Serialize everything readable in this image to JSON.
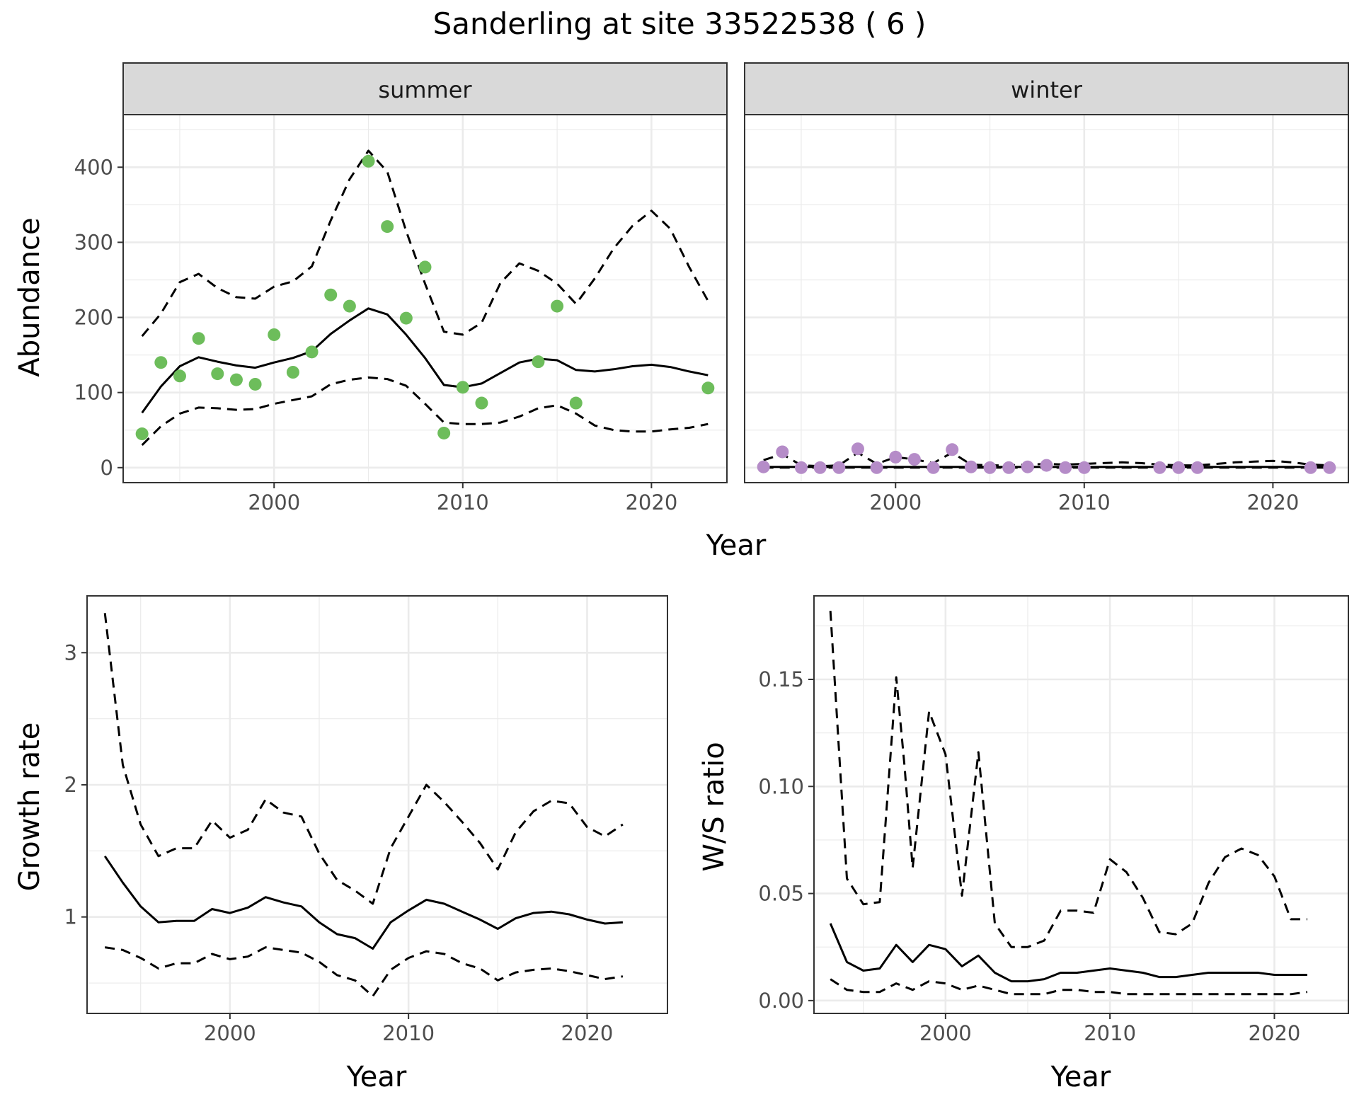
{
  "title": "Sanderling at site 33522538 ( 6 )",
  "colors": {
    "summer_points": "#6dbd5b",
    "winter_points": "#b58cc8",
    "line": "#000000",
    "strip_bg": "#d9d9d9",
    "grid_major": "#ebebeb",
    "panel_border": "#333333"
  },
  "chart_data": [
    {
      "type": "line",
      "panel": "abundance",
      "facets": [
        "summer",
        "winter"
      ],
      "xlabel": "Year",
      "ylabel": "Abundance",
      "xlim": [
        1992,
        2024
      ],
      "ylim": [
        -20,
        470
      ],
      "x_ticks": [
        2000,
        2010,
        2020
      ],
      "y_ticks": [
        0,
        100,
        200,
        300,
        400
      ],
      "grid": true,
      "summer": {
        "observed": {
          "x": [
            1993,
            1994,
            1995,
            1996,
            1997,
            1998,
            1999,
            2000,
            2001,
            2002,
            2003,
            2004,
            2005,
            2006,
            2007,
            2008,
            2009,
            2010,
            2011,
            2014,
            2015,
            2016,
            2023
          ],
          "y": [
            45,
            140,
            122,
            172,
            125,
            117,
            111,
            177,
            127,
            154,
            230,
            215,
            408,
            321,
            199,
            267,
            46,
            107,
            86,
            141,
            215,
            86,
            106
          ]
        },
        "fit": {
          "x": [
            1993,
            1994,
            1995,
            1996,
            1997,
            1998,
            1999,
            2000,
            2001,
            2002,
            2003,
            2004,
            2005,
            2006,
            2007,
            2008,
            2009,
            2010,
            2011,
            2012,
            2013,
            2014,
            2015,
            2016,
            2017,
            2018,
            2019,
            2020,
            2021,
            2022,
            2023
          ],
          "y": [
            73,
            108,
            135,
            147,
            141,
            136,
            133,
            140,
            146,
            155,
            178,
            196,
            212,
            204,
            177,
            146,
            110,
            107,
            112,
            126,
            140,
            145,
            143,
            130,
            128,
            131,
            135,
            137,
            134,
            128,
            123
          ]
        },
        "upper": {
          "x": [
            1993,
            1994,
            1995,
            1996,
            1997,
            1998,
            1999,
            2000,
            2001,
            2002,
            2003,
            2004,
            2005,
            2006,
            2007,
            2008,
            2009,
            2010,
            2011,
            2012,
            2013,
            2014,
            2015,
            2016,
            2017,
            2018,
            2019,
            2020,
            2021,
            2022,
            2023
          ],
          "y": [
            175,
            205,
            247,
            258,
            239,
            227,
            225,
            241,
            248,
            268,
            329,
            384,
            422,
            394,
            315,
            245,
            181,
            177,
            193,
            246,
            272,
            262,
            245,
            218,
            252,
            292,
            322,
            342,
            318,
            267,
            222
          ]
        },
        "lower": {
          "x": [
            1993,
            1994,
            1995,
            1996,
            1997,
            1998,
            1999,
            2000,
            2001,
            2002,
            2003,
            2004,
            2005,
            2006,
            2007,
            2008,
            2009,
            2010,
            2011,
            2012,
            2013,
            2014,
            2015,
            2016,
            2017,
            2018,
            2019,
            2020,
            2021,
            2022,
            2023
          ],
          "y": [
            30,
            55,
            72,
            80,
            79,
            77,
            78,
            85,
            90,
            95,
            111,
            117,
            120,
            118,
            109,
            85,
            60,
            58,
            58,
            60,
            68,
            79,
            83,
            72,
            56,
            50,
            48,
            48,
            51,
            53,
            58
          ]
        }
      },
      "winter": {
        "observed": {
          "x": [
            1993,
            1994,
            1995,
            1996,
            1997,
            1998,
            1999,
            2000,
            2001,
            2002,
            2003,
            2004,
            2005,
            2006,
            2007,
            2008,
            2009,
            2010,
            2014,
            2015,
            2016,
            2022,
            2023
          ],
          "y": [
            1,
            21,
            0,
            0,
            0,
            25,
            0,
            14,
            11,
            0,
            24,
            1,
            0,
            0,
            1,
            3,
            0,
            0,
            0,
            0,
            0,
            0,
            0
          ]
        },
        "fit": {
          "x": [
            1993,
            1995,
            2000,
            2005,
            2010,
            2015,
            2020,
            2023
          ],
          "y": [
            1,
            1,
            1,
            1,
            1,
            1,
            1,
            1
          ]
        },
        "upper": {
          "x": [
            1993,
            1994,
            1995,
            1996,
            1997,
            1998,
            1999,
            2000,
            2001,
            2002,
            2003,
            2004,
            2005,
            2006,
            2007,
            2008,
            2009,
            2010,
            2011,
            2012,
            2013,
            2014,
            2015,
            2016,
            2017,
            2018,
            2019,
            2020,
            2021,
            2022,
            2023
          ],
          "y": [
            10,
            18,
            3,
            2,
            3,
            20,
            5,
            14,
            11,
            6,
            20,
            4,
            3,
            3,
            4,
            5,
            4,
            5,
            6,
            7,
            6,
            4,
            3,
            3,
            5,
            7,
            8,
            9,
            7,
            4,
            3
          ]
        },
        "lower": {
          "x": [
            1993,
            2023
          ],
          "y": [
            0,
            0
          ]
        }
      }
    },
    {
      "type": "line",
      "panel": "growth",
      "xlabel": "Year",
      "ylabel": "Growth rate",
      "xlim": [
        1992,
        2024.5
      ],
      "ylim": [
        0.27,
        3.43
      ],
      "x_ticks": [
        2000,
        2010,
        2020
      ],
      "y_ticks": [
        1,
        2,
        3
      ],
      "grid": true,
      "fit": {
        "x": [
          1993,
          1994,
          1995,
          1996,
          1997,
          1998,
          1999,
          2000,
          2001,
          2002,
          2003,
          2004,
          2005,
          2006,
          2007,
          2008,
          2009,
          2010,
          2011,
          2012,
          2013,
          2014,
          2015,
          2016,
          2017,
          2018,
          2019,
          2020,
          2021,
          2022
        ],
        "y": [
          1.46,
          1.26,
          1.08,
          0.96,
          0.97,
          0.97,
          1.06,
          1.03,
          1.07,
          1.15,
          1.11,
          1.08,
          0.96,
          0.87,
          0.84,
          0.76,
          0.96,
          1.05,
          1.13,
          1.1,
          1.04,
          0.98,
          0.91,
          0.99,
          1.03,
          1.04,
          1.02,
          0.98,
          0.95,
          0.96
        ]
      },
      "upper": {
        "x": [
          1993,
          1994,
          1995,
          1996,
          1997,
          1998,
          1999,
          2000,
          2001,
          2002,
          2003,
          2004,
          2005,
          2006,
          2007,
          2008,
          2009,
          2010,
          2011,
          2012,
          2013,
          2014,
          2015,
          2016,
          2017,
          2018,
          2019,
          2020,
          2021,
          2022
        ],
        "y": [
          3.3,
          2.15,
          1.7,
          1.46,
          1.52,
          1.52,
          1.73,
          1.6,
          1.66,
          1.89,
          1.79,
          1.76,
          1.48,
          1.28,
          1.2,
          1.1,
          1.52,
          1.76,
          2.0,
          1.87,
          1.72,
          1.56,
          1.36,
          1.64,
          1.8,
          1.88,
          1.86,
          1.68,
          1.61,
          1.7
        ]
      },
      "lower": {
        "x": [
          1993,
          1994,
          1995,
          1996,
          1997,
          1998,
          1999,
          2000,
          2001,
          2002,
          2003,
          2004,
          2005,
          2006,
          2007,
          2008,
          2009,
          2010,
          2011,
          2012,
          2013,
          2014,
          2015,
          2016,
          2017,
          2018,
          2019,
          2020,
          2021,
          2022
        ],
        "y": [
          0.77,
          0.75,
          0.69,
          0.61,
          0.65,
          0.65,
          0.72,
          0.68,
          0.7,
          0.77,
          0.75,
          0.73,
          0.66,
          0.56,
          0.52,
          0.4,
          0.6,
          0.69,
          0.74,
          0.72,
          0.65,
          0.61,
          0.52,
          0.58,
          0.6,
          0.61,
          0.59,
          0.56,
          0.53,
          0.55
        ]
      }
    },
    {
      "type": "line",
      "panel": "ratio",
      "xlabel": "Year",
      "ylabel": "W/S ratio",
      "xlim": [
        1992,
        2024.5
      ],
      "ylim": [
        -0.006,
        0.189
      ],
      "x_ticks": [
        2000,
        2010,
        2020
      ],
      "y_ticks": [
        0.0,
        0.05,
        0.1,
        0.15
      ],
      "y_tick_labels": [
        "0.00",
        "0.05",
        "0.10",
        "0.15"
      ],
      "grid": true,
      "fit": {
        "x": [
          1993,
          1994,
          1995,
          1996,
          1997,
          1998,
          1999,
          2000,
          2001,
          2002,
          2003,
          2004,
          2005,
          2006,
          2007,
          2008,
          2009,
          2010,
          2011,
          2012,
          2013,
          2014,
          2015,
          2016,
          2017,
          2018,
          2019,
          2020,
          2021,
          2022
        ],
        "y": [
          0.036,
          0.018,
          0.014,
          0.015,
          0.026,
          0.018,
          0.026,
          0.024,
          0.016,
          0.021,
          0.013,
          0.009,
          0.009,
          0.01,
          0.013,
          0.013,
          0.014,
          0.015,
          0.014,
          0.013,
          0.011,
          0.011,
          0.012,
          0.013,
          0.013,
          0.013,
          0.013,
          0.012,
          0.012,
          0.012
        ]
      },
      "upper": {
        "x": [
          1993,
          1994,
          1995,
          1996,
          1997,
          1997.5,
          1998,
          1999,
          2000,
          2001,
          2002,
          2003,
          2004,
          2005,
          2006,
          2007,
          2008,
          2009,
          2010,
          2011,
          2012,
          2013,
          2014,
          2015,
          2016,
          2017,
          2018,
          2019,
          2020,
          2021,
          2022
        ],
        "y": [
          0.182,
          0.057,
          0.045,
          0.046,
          0.151,
          0.11,
          0.062,
          0.135,
          0.115,
          0.049,
          0.116,
          0.036,
          0.025,
          0.025,
          0.028,
          0.042,
          0.042,
          0.041,
          0.066,
          0.06,
          0.048,
          0.032,
          0.031,
          0.036,
          0.055,
          0.067,
          0.071,
          0.068,
          0.058,
          0.038,
          0.038
        ]
      },
      "lower": {
        "x": [
          1993,
          1994,
          1995,
          1996,
          1997,
          1998,
          1999,
          2000,
          2001,
          2002,
          2003,
          2004,
          2005,
          2006,
          2007,
          2008,
          2009,
          2010,
          2011,
          2012,
          2013,
          2014,
          2015,
          2016,
          2017,
          2018,
          2019,
          2020,
          2021,
          2022
        ],
        "y": [
          0.01,
          0.005,
          0.004,
          0.004,
          0.008,
          0.005,
          0.009,
          0.008,
          0.005,
          0.007,
          0.005,
          0.003,
          0.003,
          0.003,
          0.005,
          0.005,
          0.004,
          0.004,
          0.003,
          0.003,
          0.003,
          0.003,
          0.003,
          0.003,
          0.003,
          0.003,
          0.003,
          0.003,
          0.003,
          0.004
        ]
      }
    }
  ]
}
